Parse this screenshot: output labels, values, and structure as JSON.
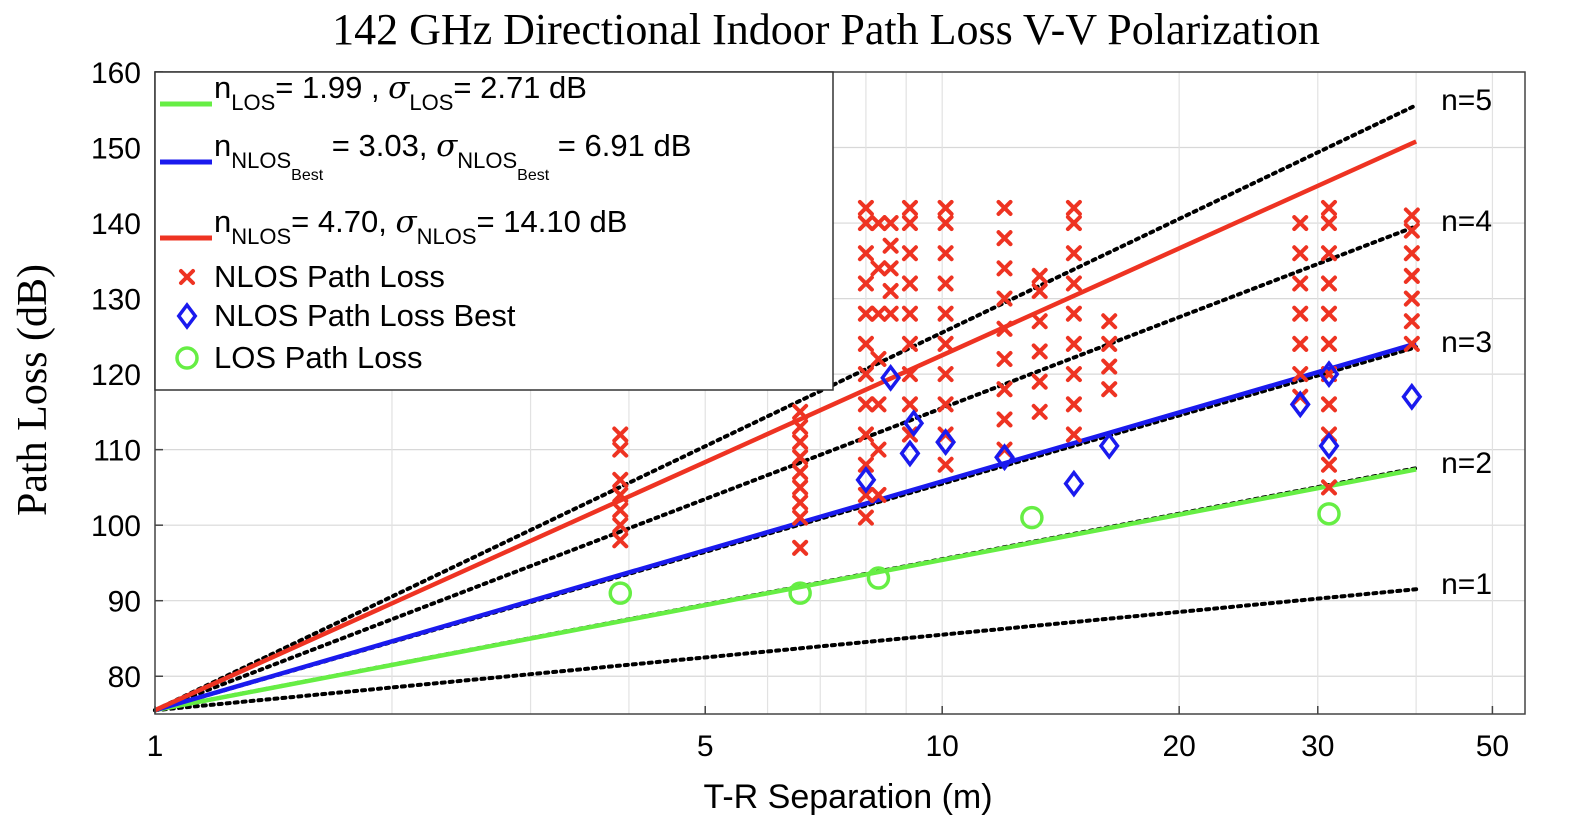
{
  "chart_data": {
    "type": "scatter",
    "title": "142 GHz Directional Indoor Path Loss V-V Polarization",
    "xlabel": "T-R Separation (m)",
    "ylabel": "Path Loss (dB)",
    "x_scale": "log",
    "xlim": [
      1,
      55
    ],
    "ylim": [
      75,
      160
    ],
    "x_ticks": [
      1,
      5,
      10,
      20,
      30,
      50
    ],
    "y_ticks": [
      80,
      90,
      100,
      110,
      120,
      130,
      140,
      150,
      160
    ],
    "grid": true,
    "legend_position": "top-left",
    "fspl_1m_db": 75.5,
    "reference_lines": [
      {
        "label": "n=1",
        "n": 1,
        "x_end": 40,
        "color": "#000000"
      },
      {
        "label": "n=2",
        "n": 2,
        "x_end": 40,
        "color": "#000000"
      },
      {
        "label": "n=3",
        "n": 3,
        "x_end": 40,
        "color": "#000000"
      },
      {
        "label": "n=4",
        "n": 4,
        "x_end": 40,
        "color": "#000000"
      },
      {
        "label": "n=5",
        "n": 5,
        "x_end": 40,
        "color": "#000000"
      }
    ],
    "fit_lines": [
      {
        "name": "LOS fit",
        "n": 1.99,
        "sigma": 2.71,
        "x_end": 40,
        "color": "#66ee44"
      },
      {
        "name": "NLOS Best fit",
        "n": 3.03,
        "sigma": 6.91,
        "x_end": 40,
        "color": "#1a1aee"
      },
      {
        "name": "NLOS fit",
        "n": 4.7,
        "sigma": 14.1,
        "x_end": 40,
        "color": "#ee3322"
      }
    ],
    "series": [
      {
        "name": "NLOS Path Loss",
        "marker": "x",
        "color": "#ee3322",
        "points": [
          [
            3.9,
            98
          ],
          [
            3.9,
            100
          ],
          [
            3.9,
            102
          ],
          [
            3.9,
            104
          ],
          [
            3.9,
            106
          ],
          [
            3.9,
            110
          ],
          [
            3.9,
            112
          ],
          [
            6.6,
            97
          ],
          [
            6.6,
            101
          ],
          [
            6.6,
            103
          ],
          [
            6.6,
            105
          ],
          [
            6.6,
            107
          ],
          [
            6.6,
            109
          ],
          [
            6.6,
            111
          ],
          [
            6.6,
            113
          ],
          [
            6.6,
            115
          ],
          [
            8.0,
            101
          ],
          [
            8.0,
            104
          ],
          [
            8.0,
            108
          ],
          [
            8.0,
            112
          ],
          [
            8.0,
            116
          ],
          [
            8.0,
            120
          ],
          [
            8.0,
            124
          ],
          [
            8.0,
            128
          ],
          [
            8.0,
            132
          ],
          [
            8.0,
            136
          ],
          [
            8.0,
            140
          ],
          [
            8.0,
            142
          ],
          [
            8.3,
            104
          ],
          [
            8.3,
            110
          ],
          [
            8.3,
            116
          ],
          [
            8.3,
            122
          ],
          [
            8.3,
            128
          ],
          [
            8.3,
            134
          ],
          [
            8.3,
            140
          ],
          [
            8.6,
            128
          ],
          [
            8.6,
            131
          ],
          [
            8.6,
            134
          ],
          [
            8.6,
            137
          ],
          [
            8.6,
            140
          ],
          [
            9.1,
            112
          ],
          [
            9.1,
            116
          ],
          [
            9.1,
            120
          ],
          [
            9.1,
            124
          ],
          [
            9.1,
            128
          ],
          [
            9.1,
            132
          ],
          [
            9.1,
            136
          ],
          [
            9.1,
            140
          ],
          [
            9.1,
            142
          ],
          [
            10.1,
            108
          ],
          [
            10.1,
            112
          ],
          [
            10.1,
            116
          ],
          [
            10.1,
            120
          ],
          [
            10.1,
            124
          ],
          [
            10.1,
            128
          ],
          [
            10.1,
            132
          ],
          [
            10.1,
            136
          ],
          [
            10.1,
            140
          ],
          [
            10.1,
            142
          ],
          [
            12.0,
            110
          ],
          [
            12.0,
            114
          ],
          [
            12.0,
            118
          ],
          [
            12.0,
            122
          ],
          [
            12.0,
            126
          ],
          [
            12.0,
            130
          ],
          [
            12.0,
            134
          ],
          [
            12.0,
            138
          ],
          [
            12.0,
            142
          ],
          [
            13.3,
            115
          ],
          [
            13.3,
            119
          ],
          [
            13.3,
            123
          ],
          [
            13.3,
            127
          ],
          [
            13.3,
            131
          ],
          [
            13.3,
            133
          ],
          [
            14.7,
            112
          ],
          [
            14.7,
            116
          ],
          [
            14.7,
            120
          ],
          [
            14.7,
            124
          ],
          [
            14.7,
            128
          ],
          [
            14.7,
            132
          ],
          [
            14.7,
            136
          ],
          [
            14.7,
            140
          ],
          [
            14.7,
            142
          ],
          [
            16.3,
            118
          ],
          [
            16.3,
            121
          ],
          [
            16.3,
            124
          ],
          [
            16.3,
            127
          ],
          [
            28.5,
            117
          ],
          [
            28.5,
            120
          ],
          [
            28.5,
            124
          ],
          [
            28.5,
            128
          ],
          [
            28.5,
            132
          ],
          [
            28.5,
            136
          ],
          [
            28.5,
            140
          ],
          [
            31.0,
            105
          ],
          [
            31.0,
            108
          ],
          [
            31.0,
            112
          ],
          [
            31.0,
            116
          ],
          [
            31.0,
            120
          ],
          [
            31.0,
            124
          ],
          [
            31.0,
            128
          ],
          [
            31.0,
            132
          ],
          [
            31.0,
            136
          ],
          [
            31.0,
            140
          ],
          [
            31.0,
            142
          ],
          [
            39.5,
            124
          ],
          [
            39.5,
            127
          ],
          [
            39.5,
            130
          ],
          [
            39.5,
            133
          ],
          [
            39.5,
            136
          ],
          [
            39.5,
            139
          ],
          [
            39.5,
            141
          ]
        ]
      },
      {
        "name": "NLOS Path Loss Best",
        "marker": "diamond",
        "color": "#1a1aee",
        "points": [
          [
            8.0,
            106
          ],
          [
            8.6,
            119.5
          ],
          [
            9.1,
            109.5
          ],
          [
            9.2,
            113.5
          ],
          [
            10.1,
            111
          ],
          [
            12.0,
            109
          ],
          [
            14.7,
            105.5
          ],
          [
            16.3,
            110.5
          ],
          [
            28.5,
            116
          ],
          [
            31.0,
            120
          ],
          [
            31.0,
            110.5
          ],
          [
            39.5,
            117
          ]
        ]
      },
      {
        "name": "LOS Path Loss",
        "marker": "circle",
        "color": "#66ee44",
        "points": [
          [
            3.9,
            91
          ],
          [
            6.6,
            91
          ],
          [
            8.3,
            93
          ],
          [
            13.0,
            101
          ],
          [
            31.0,
            101.5
          ]
        ]
      }
    ],
    "legend": [
      {
        "key": "los",
        "main": "n",
        "sub": "LOS",
        "text1": "= 1.99 , ",
        "greek": "σ",
        "sub2": "LOS",
        "text2": "= 2.71 dB"
      },
      {
        "key": "nlosbest",
        "main": "n",
        "sub": "NLOS",
        "subsub": "Best",
        "text1": " = 3.03,  ",
        "greek": "σ",
        "sub2": "NLOS",
        "subsub2": "Best",
        "text2": " = 6.91 dB"
      },
      {
        "key": "nlos",
        "main": "n",
        "sub": "NLOS",
        "text1": "= 4.70,  ",
        "greek": "σ",
        "sub2": "NLOS",
        "text2": "= 14.10 dB"
      },
      {
        "key": "nlos-pts",
        "label": "NLOS Path Loss"
      },
      {
        "key": "nlosbest-pts",
        "label": "NLOS Path Loss Best"
      },
      {
        "key": "los-pts",
        "label": "LOS Path Loss"
      }
    ]
  }
}
